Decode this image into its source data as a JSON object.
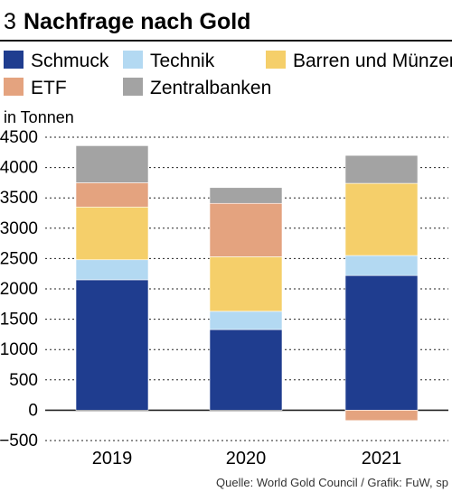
{
  "header": {
    "number": "3",
    "title": "Nachfrage nach Gold"
  },
  "source": "Quelle: World Gold Council / Grafik: FuW, sp",
  "chart_data": {
    "type": "bar",
    "stacked": true,
    "title": "Nachfrage nach Gold",
    "ylabel": "in Tonnen",
    "ylim": [
      -500,
      4500
    ],
    "yticks": [
      4500,
      4000,
      3500,
      3000,
      2500,
      2000,
      1500,
      1000,
      500,
      0,
      -500
    ],
    "grid": true,
    "legend_position": "top",
    "categories": [
      "2019",
      "2020",
      "2021"
    ],
    "series": [
      {
        "name": "Schmuck",
        "color": "#1f3d8f",
        "values": [
          2150,
          1330,
          2220
        ]
      },
      {
        "name": "Technik",
        "color": "#b3d9f2",
        "values": [
          330,
          300,
          330
        ]
      },
      {
        "name": "Barren und Münzen",
        "color": "#f5cf6a",
        "values": [
          870,
          900,
          1190
        ]
      },
      {
        "name": "ETF",
        "color": "#e4a37f",
        "values": [
          400,
          880,
          -170
        ]
      },
      {
        "name": "Zentralbanken",
        "color": "#a3a3a3",
        "values": [
          610,
          260,
          460
        ]
      }
    ]
  }
}
